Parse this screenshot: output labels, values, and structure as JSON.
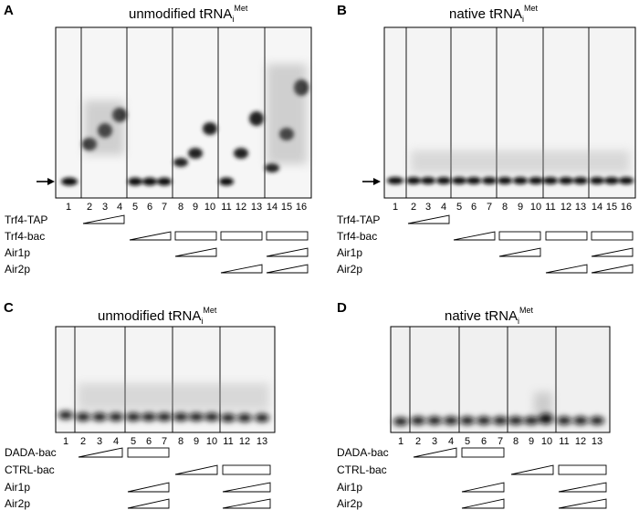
{
  "panels": [
    {
      "letter": "A",
      "title": {
        "main": "unmodified tRNA",
        "sub": "i",
        "sup": "Met"
      },
      "lanes": [
        "1",
        "2",
        "3",
        "4",
        "5",
        "6",
        "7",
        "8",
        "9",
        "10",
        "11",
        "12",
        "13",
        "14",
        "15",
        "16"
      ],
      "rows": [
        {
          "label": "Trf4-TAP"
        },
        {
          "label": "Trf4-bac"
        },
        {
          "label": "Air1p"
        },
        {
          "label": "Air2p"
        }
      ],
      "has_arrow": true
    },
    {
      "letter": "B",
      "title": {
        "main": "native tRNA",
        "sub": "i",
        "sup": "Met"
      },
      "lanes": [
        "1",
        "2",
        "3",
        "4",
        "5",
        "6",
        "7",
        "8",
        "9",
        "10",
        "11",
        "12",
        "13",
        "14",
        "15",
        "16"
      ],
      "rows": [
        {
          "label": "Trf4-TAP"
        },
        {
          "label": "Trf4-bac"
        },
        {
          "label": "Air1p"
        },
        {
          "label": "Air2p"
        }
      ],
      "has_arrow": true
    },
    {
      "letter": "C",
      "title": {
        "main": "unmodified tRNA",
        "sub": "i",
        "sup": "Met"
      },
      "lanes": [
        "1",
        "2",
        "3",
        "4",
        "5",
        "6",
        "7",
        "8",
        "9",
        "10",
        "11",
        "12",
        "13"
      ],
      "rows": [
        {
          "label": "DADA-bac"
        },
        {
          "label": "CTRL-bac"
        },
        {
          "label": "Air1p"
        },
        {
          "label": "Air2p"
        }
      ],
      "has_arrow": false
    },
    {
      "letter": "D",
      "title": {
        "main": "native tRNA",
        "sub": "i",
        "sup": "Met"
      },
      "lanes": [
        "1",
        "2",
        "3",
        "4",
        "5",
        "6",
        "7",
        "8",
        "9",
        "10",
        "11",
        "12",
        "13"
      ],
      "rows": [
        {
          "label": "DADA-bac"
        },
        {
          "label": "CTRL-bac"
        },
        {
          "label": "Air1p"
        },
        {
          "label": "Air2p"
        }
      ],
      "has_arrow": false
    }
  ]
}
